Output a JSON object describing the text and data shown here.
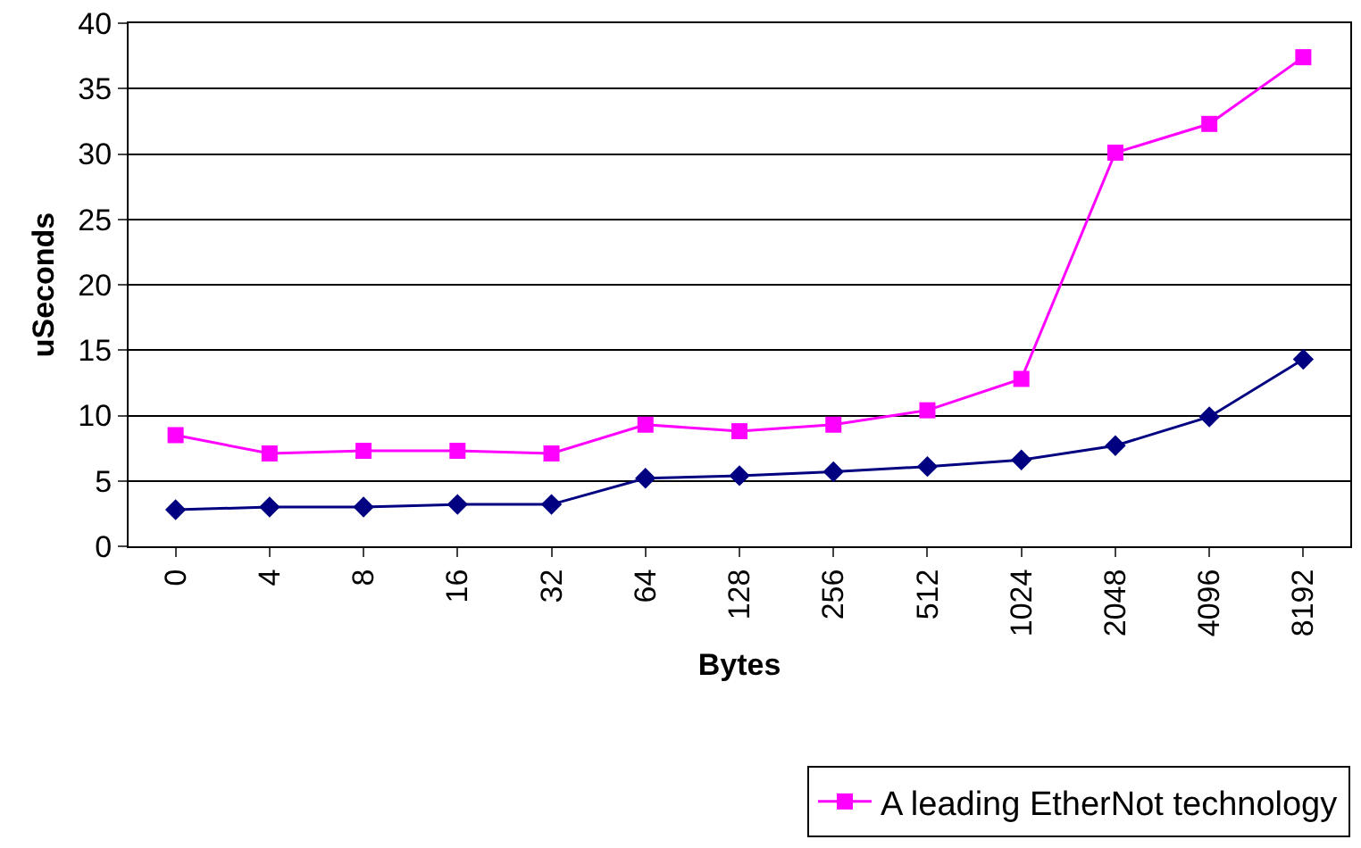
{
  "chart_data": {
    "type": "line",
    "xlabel": "Bytes",
    "ylabel": "uSeconds",
    "categories": [
      "0",
      "4",
      "8",
      "16",
      "32",
      "64",
      "128",
      "256",
      "512",
      "1024",
      "2048",
      "4096",
      "8192"
    ],
    "series": [
      {
        "color": "#000080",
        "marker": "diamond",
        "values": [
          2.8,
          3.0,
          3.0,
          3.2,
          3.2,
          5.2,
          5.4,
          5.7,
          6.1,
          6.6,
          7.7,
          9.9,
          14.3
        ]
      },
      {
        "name": "A leading EtherNot technology",
        "color": "#ff00ff",
        "marker": "square",
        "values": [
          8.5,
          7.1,
          7.3,
          7.3,
          7.1,
          9.3,
          8.8,
          9.3,
          10.4,
          12.8,
          30.1,
          32.3,
          37.4
        ]
      }
    ],
    "ylim": [
      0,
      40
    ],
    "yticks": [
      0,
      5,
      10,
      15,
      20,
      25,
      30,
      35,
      40
    ],
    "grid": "y",
    "legend": "bottom",
    "line_style": "solid"
  }
}
